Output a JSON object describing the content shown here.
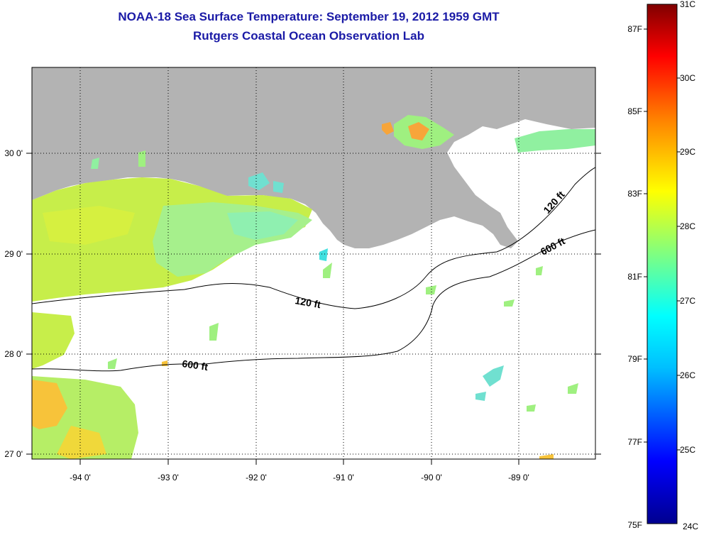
{
  "header": {
    "title": "NOAA-18 Sea Surface Temperature:  September 19, 2012 1959 GMT",
    "subtitle": "Rutgers Coastal Ocean Observation Lab"
  },
  "map": {
    "lat_labels": [
      "30 0'",
      "29 0'",
      "28 0'",
      "27 0'"
    ],
    "lon_labels": [
      "-94 0'",
      "-93 0'",
      "-92 0'",
      "-91 0'",
      "-90 0'",
      "-89 0'"
    ],
    "contour_labels": {
      "c120_west": "120 ft",
      "c120_east": "120 ft",
      "c600_west": "600 ft",
      "c600_east": "600 ft"
    },
    "land_color": "#b3b3b3"
  },
  "colorbar": {
    "fahrenheit": [
      "87F",
      "85F",
      "83F",
      "81F",
      "79F",
      "77F",
      "75F"
    ],
    "celsius": [
      "31C",
      "30C",
      "29C",
      "28C",
      "27C",
      "26C",
      "25C",
      "24C"
    ],
    "colors": [
      "#00008f",
      "#0000ff",
      "#00bfff",
      "#00ffff",
      "#80ff80",
      "#ffff00",
      "#ff8000",
      "#ff0000",
      "#800000"
    ]
  }
}
